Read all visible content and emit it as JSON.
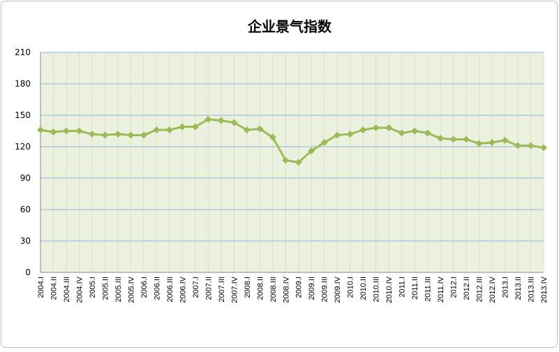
{
  "chart_data": {
    "type": "line",
    "title": "企业景气指数",
    "categories": [
      "2004.I",
      "2004.II",
      "2004.III",
      "2004.IV",
      "2005.I",
      "2005.II",
      "2005.III",
      "2005.IV",
      "2006.I",
      "2006.II",
      "2006.III",
      "2006.IV",
      "2007.I",
      "2007.II",
      "2007.III",
      "2007.IV",
      "2008.I",
      "2008.II",
      "2008.III",
      "2008.IV",
      "2009.I",
      "2009.II",
      "2009.III",
      "2009.IV",
      "2010.I",
      "2010.II",
      "2010.III",
      "2010.IV",
      "2011.I",
      "2011.II",
      "2011.III",
      "2011.IV",
      "2012.I",
      "2012.II",
      "2012.III",
      "2012.IV",
      "2013.I",
      "2013.II",
      "2013.III",
      "2013.IV"
    ],
    "values": [
      136,
      134,
      135,
      135,
      132,
      131,
      132,
      131,
      131,
      136,
      136,
      139,
      139,
      146,
      145,
      143,
      136,
      137,
      129,
      107,
      105,
      116,
      124,
      131,
      132,
      136,
      138,
      138,
      133,
      135,
      133,
      128,
      127,
      127,
      123,
      124,
      126,
      121,
      121,
      119
    ],
    "color": "#9bbb59",
    "ylim": [
      0,
      210
    ],
    "yticks": [
      0,
      30,
      60,
      90,
      120,
      150,
      180,
      210
    ],
    "grid": true
  }
}
